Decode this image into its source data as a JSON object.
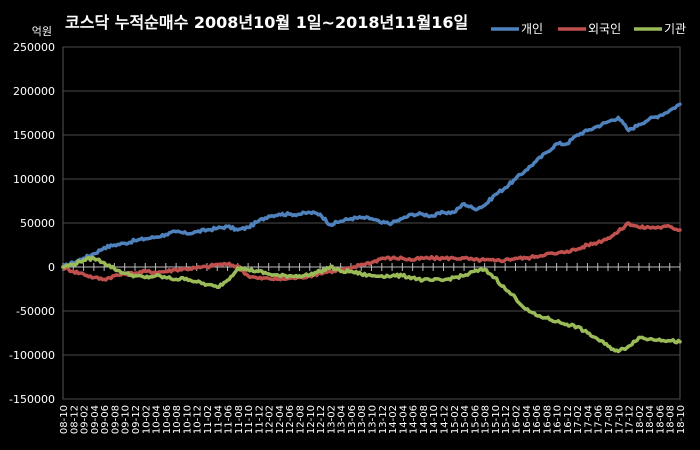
{
  "chart_data": {
    "type": "line",
    "title": "코스닥 누적순매수 2008년10월 1일~2018년11월16일",
    "yunit": "억원",
    "ylim": [
      -150000,
      250000
    ],
    "yticks": [
      -150000,
      -100000,
      -50000,
      0,
      50000,
      100000,
      150000,
      200000,
      250000
    ],
    "grid": true,
    "legend_position": "top-right",
    "xcategories": [
      "08-10",
      "08-12",
      "09-02",
      "09-04",
      "09-06",
      "09-08",
      "09-10",
      "09-12",
      "10-02",
      "10-04",
      "10-06",
      "10-08",
      "10-10",
      "10-12",
      "11-02",
      "11-04",
      "11-06",
      "11-08",
      "11-10",
      "11-12",
      "12-02",
      "12-04",
      "12-06",
      "12-08",
      "12-10",
      "12-12",
      "13-02",
      "13-04",
      "13-06",
      "13-08",
      "13-10",
      "13-12",
      "14-02",
      "14-04",
      "14-06",
      "14-08",
      "14-10",
      "14-12",
      "15-02",
      "15-04",
      "15-06",
      "15-08",
      "15-10",
      "15-12",
      "16-02",
      "16-04",
      "16-06",
      "16-08",
      "16-10",
      "16-12",
      "17-02",
      "17-04",
      "17-06",
      "17-08",
      "17-10",
      "17-12",
      "18-02",
      "18-04",
      "18-06",
      "18-08",
      "18-10"
    ],
    "series": [
      {
        "name": "개인",
        "color": "#4F81BD",
        "values": [
          0,
          5000,
          10000,
          15000,
          22000,
          25000,
          27000,
          30000,
          32000,
          34000,
          37000,
          40000,
          38000,
          40000,
          42000,
          44000,
          46000,
          42000,
          45000,
          52000,
          58000,
          60000,
          60000,
          60000,
          62000,
          60000,
          48000,
          52000,
          55000,
          56000,
          55000,
          50000,
          50000,
          55000,
          60000,
          60000,
          58000,
          62000,
          62000,
          72000,
          66000,
          70000,
          82000,
          90000,
          100000,
          110000,
          120000,
          130000,
          140000,
          140000,
          150000,
          155000,
          160000,
          165000,
          170000,
          155000,
          162000,
          168000,
          172000,
          178000,
          185000
        ]
      },
      {
        "name": "외국인",
        "color": "#C0504D",
        "values": [
          0,
          -5000,
          -8000,
          -12000,
          -14000,
          -10000,
          -8000,
          -7000,
          -5000,
          -6000,
          -5000,
          -3000,
          -2000,
          -1000,
          0,
          3000,
          3000,
          1000,
          -10000,
          -13000,
          -13000,
          -14000,
          -13000,
          -12000,
          -10000,
          -7000,
          -5000,
          -3000,
          -2000,
          3000,
          5000,
          10000,
          10000,
          10000,
          8000,
          10000,
          10000,
          10000,
          10000,
          10000,
          8000,
          8000,
          7000,
          8000,
          10000,
          10000,
          12000,
          15000,
          15000,
          18000,
          20000,
          25000,
          28000,
          33000,
          40000,
          50000,
          45000,
          45000,
          45000,
          46000,
          42000
        ]
      },
      {
        "name": "기관",
        "color": "#9BBB59",
        "values": [
          0,
          3000,
          8000,
          10000,
          5000,
          -2000,
          -7000,
          -10000,
          -12000,
          -10000,
          -12000,
          -14000,
          -13000,
          -17000,
          -20000,
          -23000,
          -15000,
          -1000,
          -3000,
          -5000,
          -8000,
          -10000,
          -10000,
          -10000,
          -9000,
          -5000,
          0,
          -5000,
          -5000,
          -8000,
          -10000,
          -10000,
          -10000,
          -10000,
          -12000,
          -15000,
          -15000,
          -15000,
          -12000,
          -10000,
          -5000,
          -3000,
          -12000,
          -25000,
          -35000,
          -48000,
          -55000,
          -58000,
          -62000,
          -65000,
          -68000,
          -75000,
          -82000,
          -90000,
          -96000,
          -90000,
          -80000,
          -82000,
          -82000,
          -84000,
          -85000
        ]
      }
    ]
  }
}
